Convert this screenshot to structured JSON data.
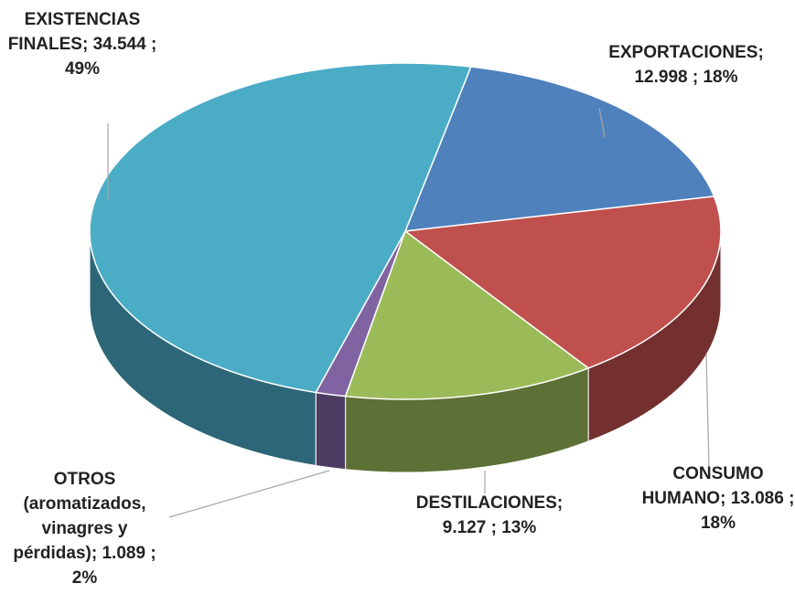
{
  "chart_data": {
    "type": "pie3d",
    "categories": [
      "EXPORTACIONES",
      "CONSUMO HUMANO",
      "DESTILACIONES",
      "OTROS (aromatizados, vinagres y pérdidas)",
      "EXISTENCIAS FINALES"
    ],
    "values": [
      12998,
      13086,
      9127,
      1089,
      34544
    ],
    "value_labels": [
      "12.998",
      "13.086",
      "9.127",
      "1.089",
      "34.544"
    ],
    "percentages": [
      18,
      18,
      13,
      2,
      49
    ],
    "percentage_labels": [
      "18%",
      "18%",
      "13%",
      "2%",
      "49%"
    ],
    "separator": ";",
    "colors": [
      "#4f81bd",
      "#c0504d",
      "#9bbb59",
      "#8064a2",
      "#4bacc6"
    ]
  }
}
